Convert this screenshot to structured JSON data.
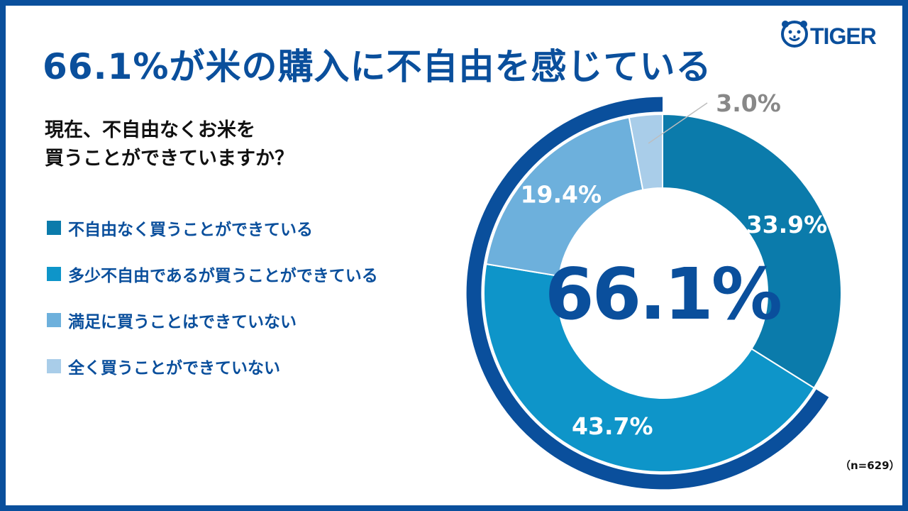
{
  "title": "66.1%が米の購入に不自由を感じている",
  "brand": {
    "name": "TIGER",
    "color": "#0a4f9c"
  },
  "question": {
    "line1": "現在、不自由なくお米を",
    "line2": "買うことができていますか？"
  },
  "note": "（n=629）",
  "colors": {
    "frame": "#0a4f9c",
    "accent_arc": "#0a4f9c",
    "title": "#0a4f9c"
  },
  "chart_data": {
    "type": "pie",
    "style": "donut",
    "categories": [
      "不自由なく買うことができている",
      "多少不自由であるが買うことができている",
      "満足に買うことはできていない",
      "全く買うことができていない"
    ],
    "values": [
      33.9,
      43.7,
      19.4,
      3.0
    ],
    "value_labels": [
      "33.9%",
      "43.7%",
      "19.4%",
      "3.0%"
    ],
    "colors": [
      "#0b7bab",
      "#0e95c9",
      "#6db0dc",
      "#a9cde9"
    ],
    "unit": "%",
    "center_label": "66.1%",
    "highlight": {
      "label": "66.1%",
      "categories": [
        "多少不自由であるが買うことができている",
        "満足に買うことはできていない",
        "全く買うことができていない"
      ]
    },
    "legend_position": "left"
  }
}
